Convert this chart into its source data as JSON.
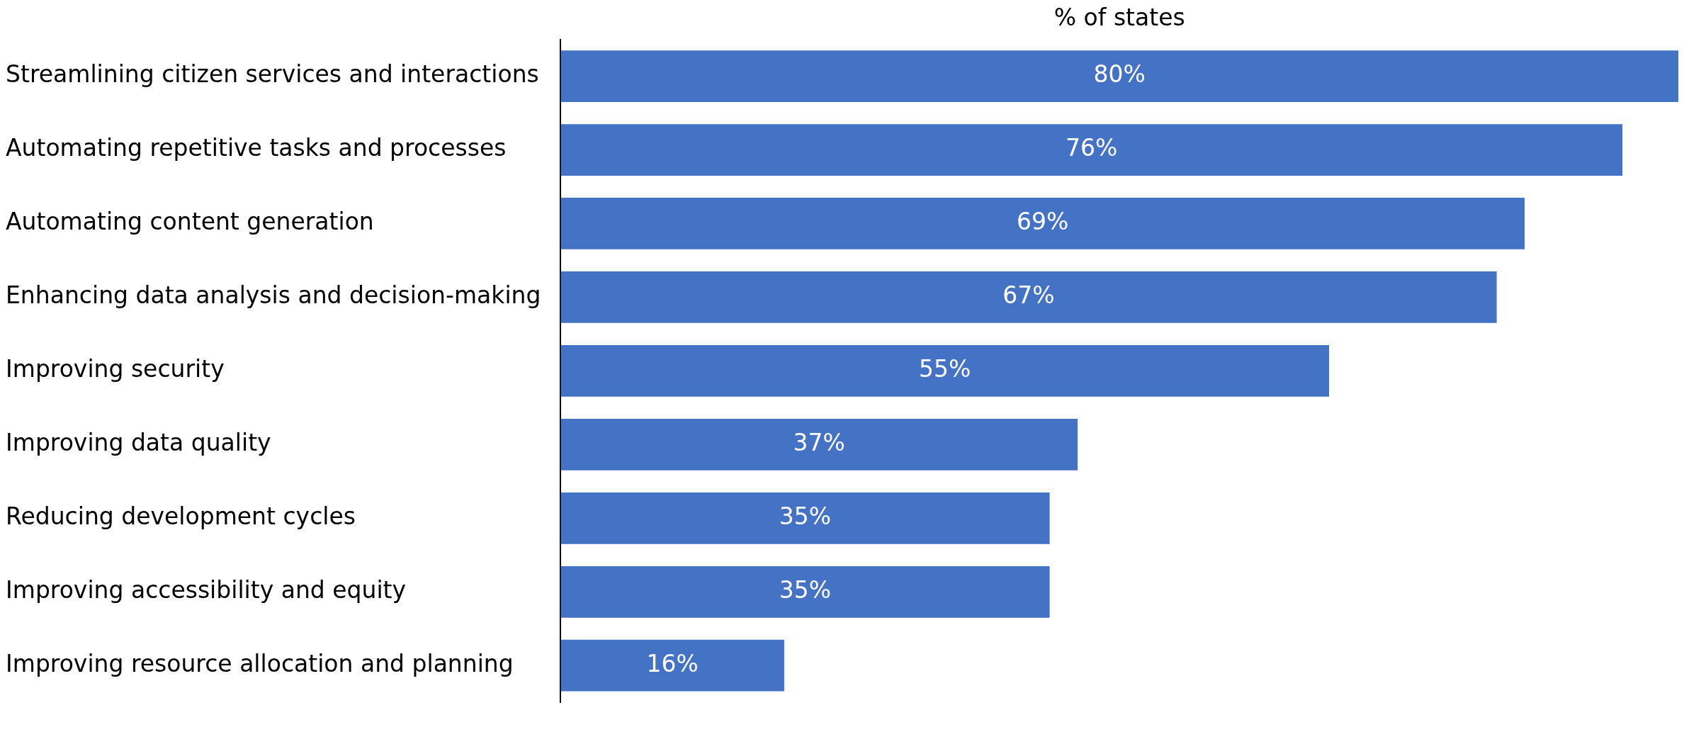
{
  "chart_data": {
    "type": "bar",
    "orientation": "horizontal",
    "xlabel": "% of states",
    "categories": [
      "Streamlining citizen services and interactions",
      "Automating repetitive tasks and processes",
      "Automating content generation",
      "Enhancing data analysis and decision-making",
      "Improving security",
      "Improving data quality",
      "Reducing development cycles",
      "Improving accessibility and equity",
      "Improving resource allocation and planning"
    ],
    "values": [
      80,
      76,
      69,
      67,
      55,
      37,
      35,
      35,
      16
    ],
    "value_labels": [
      "80%",
      "76%",
      "69%",
      "67%",
      "55%",
      "37%",
      "35%",
      "35%",
      "16%"
    ],
    "color": "#4472c4",
    "xlim": [
      0,
      80
    ],
    "grid": false,
    "legend": false
  }
}
